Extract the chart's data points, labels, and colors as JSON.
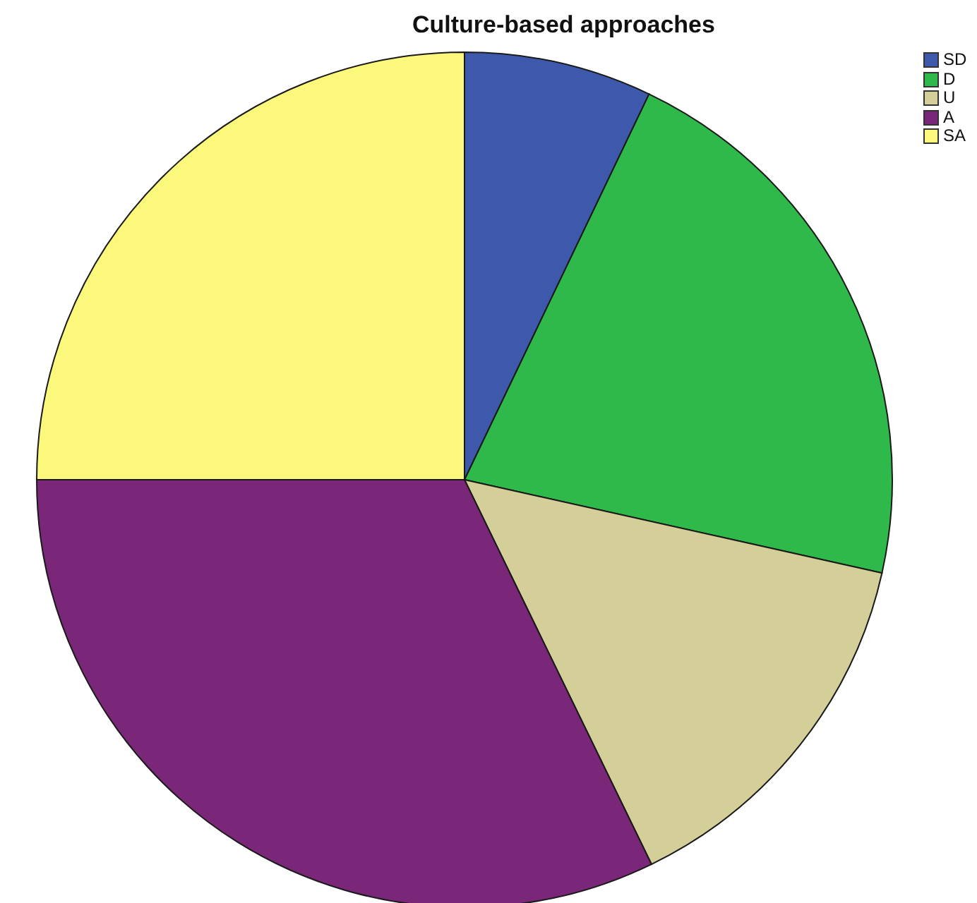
{
  "chart_data": {
    "type": "pie",
    "title": "Culture-based approaches",
    "categories": [
      "SD",
      "D",
      "U",
      "A",
      "SA"
    ],
    "values": [
      7.1,
      21.4,
      14.3,
      32.2,
      25
    ],
    "colors": [
      "#3e59ac",
      "#2fb94b",
      "#d4cf98",
      "#7b2779",
      "#fcf87c"
    ],
    "legend": "top right"
  }
}
